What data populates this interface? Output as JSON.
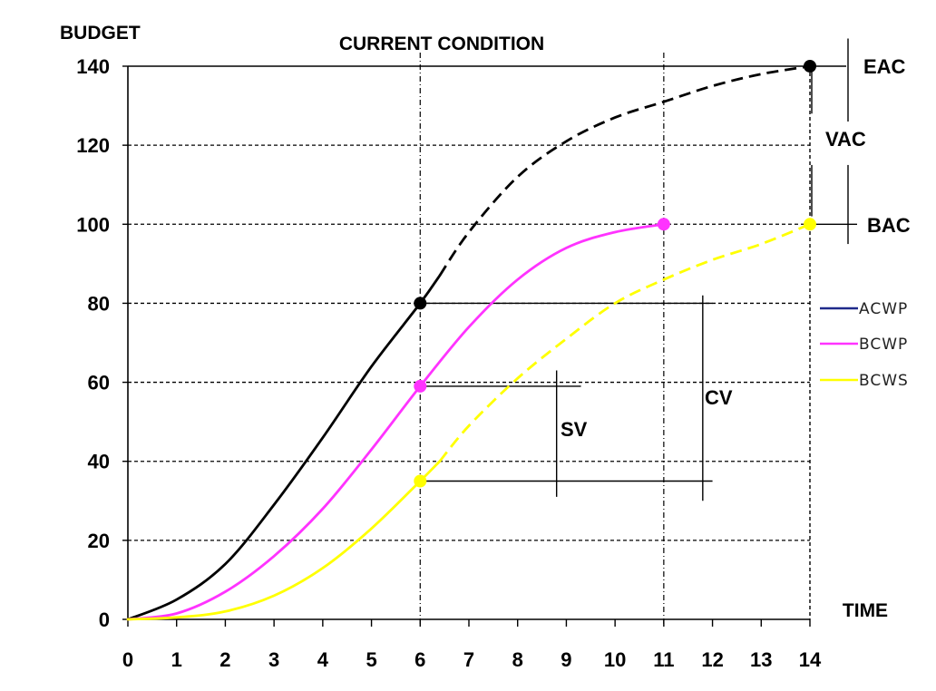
{
  "chart_data": {
    "type": "line",
    "title": "CURRENT CONDITION",
    "ylabel": "BUDGET",
    "xlabel": "TIME",
    "xlim": [
      0,
      14
    ],
    "ylim": [
      0,
      140
    ],
    "x_ticks": [
      0,
      1,
      2,
      3,
      4,
      5,
      6,
      7,
      8,
      9,
      10,
      11,
      12,
      13,
      14
    ],
    "y_ticks": [
      0,
      20,
      40,
      60,
      80,
      100,
      120,
      140
    ],
    "grid": "horizontal-dashed",
    "legend_position": "right",
    "legend": [
      "ACWP",
      "BCWP",
      "BCWS"
    ],
    "series": [
      {
        "name": "ACWP",
        "color": "#000000",
        "legend_color": "#1f2a8a",
        "actual": [
          [
            0,
            0
          ],
          [
            1,
            5
          ],
          [
            2,
            14
          ],
          [
            3,
            29
          ],
          [
            4,
            46
          ],
          [
            5,
            64
          ],
          [
            6,
            80
          ],
          [
            6.4,
            87
          ]
        ],
        "forecast": [
          [
            6.4,
            87
          ],
          [
            7,
            98
          ],
          [
            8,
            112
          ],
          [
            9,
            121
          ],
          [
            10,
            127
          ],
          [
            11,
            131
          ],
          [
            12,
            135
          ],
          [
            13,
            138
          ],
          [
            14,
            140
          ]
        ]
      },
      {
        "name": "BCWP",
        "color": "#ff33ff",
        "actual": [
          [
            0,
            0
          ],
          [
            1,
            1.5
          ],
          [
            2,
            7
          ],
          [
            3,
            16
          ],
          [
            4,
            28
          ],
          [
            5,
            43
          ],
          [
            6,
            59
          ],
          [
            7,
            74
          ],
          [
            8,
            86
          ],
          [
            9,
            94
          ],
          [
            10,
            98
          ],
          [
            11,
            100
          ]
        ]
      },
      {
        "name": "BCWS",
        "color": "#ffff00",
        "actual": [
          [
            0,
            0
          ],
          [
            1,
            0.5
          ],
          [
            2,
            2
          ],
          [
            3,
            6
          ],
          [
            4,
            13
          ],
          [
            5,
            23
          ],
          [
            6,
            35
          ],
          [
            6.4,
            40
          ]
        ],
        "forecast": [
          [
            6.4,
            40
          ],
          [
            7,
            49
          ],
          [
            8,
            61
          ],
          [
            9,
            71
          ],
          [
            10,
            80
          ],
          [
            11,
            86
          ],
          [
            12,
            91
          ],
          [
            13,
            95
          ],
          [
            14,
            100
          ]
        ]
      }
    ],
    "points": [
      {
        "x": 6,
        "y": 80,
        "color": "#000000"
      },
      {
        "x": 6,
        "y": 59,
        "color": "#ff33ff"
      },
      {
        "x": 6,
        "y": 35,
        "color": "#ffff00"
      },
      {
        "x": 11,
        "y": 100,
        "color": "#ff33ff"
      },
      {
        "x": 14,
        "y": 140,
        "color": "#000000"
      },
      {
        "x": 14,
        "y": 100,
        "color": "#ffff00"
      }
    ],
    "vertical_markers": [
      6,
      11
    ],
    "annotations": {
      "eac": "EAC",
      "vac": "VAC",
      "bac": "BAC",
      "sv": "SV",
      "cv": "CV"
    }
  }
}
